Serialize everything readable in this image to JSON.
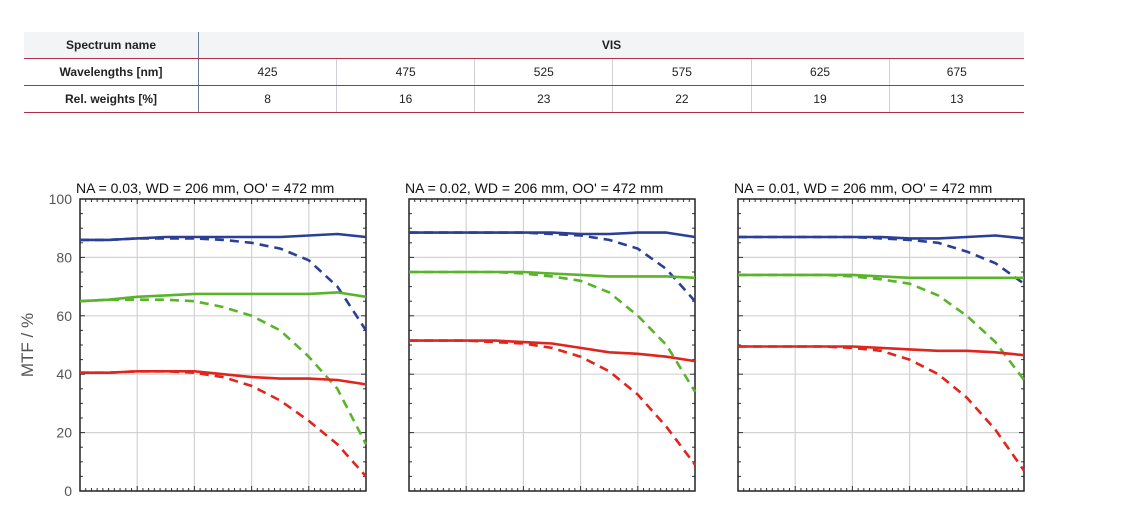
{
  "table": {
    "spectrum_label": "Spectrum name",
    "spectrum_value": "VIS",
    "wavelength_label": "Wavelengths [nm]",
    "wavelengths": [
      "425",
      "475",
      "525",
      "575",
      "625",
      "675"
    ],
    "weights_label": "Rel. weights [%]",
    "weights": [
      "8",
      "16",
      "23",
      "22",
      "19",
      "13"
    ]
  },
  "chart_data": [
    {
      "type": "line",
      "title": "NA = 0.03, WD = 206 mm, OO' = 472 mm",
      "ylabel": "MTF / %",
      "ylim": [
        0,
        100
      ],
      "yticks": [
        "0",
        "20",
        "40",
        "60",
        "80",
        "100"
      ],
      "grid": true,
      "x": [
        0,
        0.1,
        0.2,
        0.3,
        0.4,
        0.5,
        0.6,
        0.7,
        0.8,
        0.9,
        1.0
      ],
      "colors": {
        "blue": "#2b3f97",
        "green": "#59b42a",
        "red": "#e0251f"
      },
      "series": [
        {
          "color": "blue",
          "style": "solid",
          "values": [
            86,
            86,
            86.5,
            87,
            87,
            87,
            87,
            87,
            87.5,
            88,
            87
          ]
        },
        {
          "color": "blue",
          "style": "dashed",
          "values": [
            86,
            86,
            86.5,
            86.5,
            86.5,
            86,
            85,
            83,
            79,
            70,
            55
          ]
        },
        {
          "color": "green",
          "style": "solid",
          "values": [
            65,
            65.5,
            66.5,
            67,
            67.5,
            67.5,
            67.5,
            67.5,
            67.5,
            68,
            66.5
          ]
        },
        {
          "color": "green",
          "style": "dashed",
          "values": [
            65,
            65.5,
            65.5,
            65.5,
            65,
            63,
            60,
            55,
            46,
            35,
            16
          ]
        },
        {
          "color": "red",
          "style": "solid",
          "values": [
            40.5,
            40.5,
            41,
            41,
            41,
            40,
            39,
            38.5,
            38.5,
            38,
            36.5
          ]
        },
        {
          "color": "red",
          "style": "dashed",
          "values": [
            40.5,
            40.5,
            41,
            41,
            40.5,
            39,
            36,
            31,
            24,
            16,
            5
          ]
        }
      ]
    },
    {
      "type": "line",
      "title": "NA = 0.02, WD = 206 mm, OO' = 472 mm",
      "ylim": [
        0,
        100
      ],
      "grid": true,
      "x": [
        0,
        0.1,
        0.2,
        0.3,
        0.4,
        0.5,
        0.6,
        0.7,
        0.8,
        0.9,
        1.0
      ],
      "colors": {
        "blue": "#2b3f97",
        "green": "#59b42a",
        "red": "#e0251f"
      },
      "series": [
        {
          "color": "blue",
          "style": "solid",
          "values": [
            88.5,
            88.5,
            88.5,
            88.5,
            88.5,
            88.5,
            88,
            88,
            88.5,
            88.5,
            87
          ]
        },
        {
          "color": "blue",
          "style": "dashed",
          "values": [
            88.5,
            88.5,
            88.5,
            88.5,
            88.5,
            88,
            87.5,
            86,
            83,
            76,
            65
          ]
        },
        {
          "color": "green",
          "style": "solid",
          "values": [
            75,
            75,
            75,
            75,
            75,
            74.5,
            74,
            73.5,
            73.5,
            73.5,
            73
          ]
        },
        {
          "color": "green",
          "style": "dashed",
          "values": [
            75,
            75,
            75,
            75,
            74.5,
            73.5,
            72,
            68,
            60,
            50,
            34
          ]
        },
        {
          "color": "red",
          "style": "solid",
          "values": [
            51.5,
            51.5,
            51.5,
            51.5,
            51,
            50.5,
            49,
            47.5,
            47,
            46,
            44.5
          ]
        },
        {
          "color": "red",
          "style": "dashed",
          "values": [
            51.5,
            51.5,
            51.5,
            51,
            50.5,
            49,
            46,
            41,
            33,
            22,
            9
          ]
        }
      ]
    },
    {
      "type": "line",
      "title": "NA = 0.01, WD = 206 mm, OO' = 472 mm",
      "ylim": [
        0,
        100
      ],
      "grid": true,
      "x": [
        0,
        0.1,
        0.2,
        0.3,
        0.4,
        0.5,
        0.6,
        0.7,
        0.8,
        0.9,
        1.0
      ],
      "colors": {
        "blue": "#2b3f97",
        "green": "#59b42a",
        "red": "#e0251f"
      },
      "series": [
        {
          "color": "blue",
          "style": "solid",
          "values": [
            87,
            87,
            87,
            87,
            87,
            87,
            86.5,
            86.5,
            87,
            87.5,
            86.5
          ]
        },
        {
          "color": "blue",
          "style": "dashed",
          "values": [
            87,
            87,
            87,
            87,
            87,
            86.5,
            86,
            85,
            82,
            78,
            71
          ]
        },
        {
          "color": "green",
          "style": "solid",
          "values": [
            74,
            74,
            74,
            74,
            74,
            73.5,
            73,
            73,
            73,
            73,
            73
          ]
        },
        {
          "color": "green",
          "style": "dashed",
          "values": [
            74,
            74,
            74,
            74,
            73.5,
            72.5,
            71,
            67,
            60,
            51,
            38
          ]
        },
        {
          "color": "red",
          "style": "solid",
          "values": [
            49.5,
            49.5,
            49.5,
            49.5,
            49.5,
            49,
            48.5,
            48,
            48,
            47.5,
            46.5
          ]
        },
        {
          "color": "red",
          "style": "dashed",
          "values": [
            49.5,
            49.5,
            49.5,
            49.5,
            49,
            48,
            45,
            40,
            32,
            21,
            7
          ]
        }
      ]
    }
  ]
}
